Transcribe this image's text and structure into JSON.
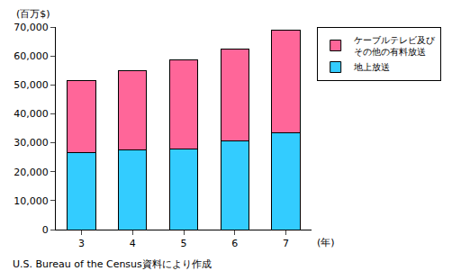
{
  "chart_data": {
    "type": "bar",
    "stacked": true,
    "categories": [
      "3",
      "4",
      "5",
      "6",
      "7"
    ],
    "series": [
      {
        "name": "地上放送",
        "color": "#33ccff",
        "values": [
          26500,
          27500,
          28000,
          30500,
          33500
        ]
      },
      {
        "name": "ケーブルテレビ及びその他の有料放送",
        "color": "#ff6699",
        "values": [
          25000,
          27500,
          30500,
          32000,
          35500
        ]
      }
    ],
    "ylim": [
      0,
      70000
    ],
    "yticks": [
      0,
      {
        "value": 10000,
        "label": "10,000"
      },
      {
        "value": 20000,
        "label": "20,000"
      },
      {
        "value": 30000,
        "label": "30,000"
      },
      {
        "value": 40000,
        "label": "40,000"
      },
      {
        "value": 50000,
        "label": "50,000"
      },
      {
        "value": 60000,
        "label": "60,000"
      },
      {
        "value": 70000,
        "label": "70,000"
      }
    ],
    "y_label": "(百万$)",
    "x_label": "(年)",
    "source": "U.S. Bureau of the Census資料により作成",
    "grid": false,
    "legend": "top right"
  }
}
